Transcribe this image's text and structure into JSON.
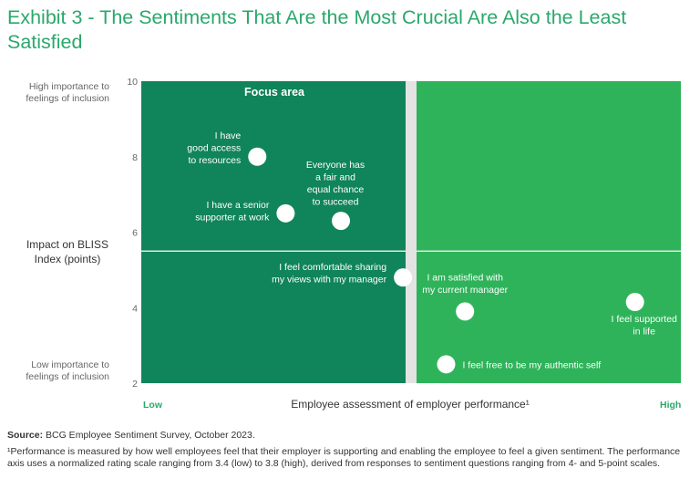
{
  "title": "Exhibit 3 - The Sentiments That Are the Most Crucial Are Also the Least Satisfied",
  "colors": {
    "title": "#2aa86b",
    "quadrant_left": "#10845a",
    "quadrant_right": "#2fb35a",
    "divider": "#e3e3e3",
    "point": "#ffffff",
    "axis_end": "#2aa86b"
  },
  "y_axis": {
    "label": "Impact on BLISS Index (points)",
    "top_note": "High importance to feelings of inclusion",
    "bottom_note": "Low importance to feelings of inclusion"
  },
  "x_axis": {
    "label": "Employee assessment of employer performance¹",
    "low": "Low",
    "high": "High"
  },
  "focus_area_label": "Focus area",
  "source_prefix": "Source:",
  "source_text": "BCG Employee Sentiment Survey, October 2023.",
  "footnote": "¹Performance is measured by how well employees feel that their employer is supporting and enabling the employee to feel a given sentiment. The performance axis uses a normalized rating scale ranging from 3.4 (low) to 3.8 (high), derived from responses to sentiment questions ranging from 4- and 5-point scales.",
  "chart_data": {
    "type": "scatter",
    "xlim": [
      3.4,
      3.8
    ],
    "ylim": [
      2,
      10
    ],
    "yticks": [
      "10",
      "8",
      "6",
      "4",
      "2"
    ],
    "x_divider": 3.6,
    "y_divider": 5.5,
    "grid": false,
    "points": [
      {
        "label": "I have good access to resources",
        "label_lines": [
          "I have",
          "good access",
          "to resources"
        ],
        "x": 3.486,
        "y": 8.0
      },
      {
        "label": "I have a senior supporter at work",
        "label_lines": [
          "I have a senior",
          "supporter at work"
        ],
        "x": 3.507,
        "y": 6.5
      },
      {
        "label": "Everyone has a fair and equal chance to succeed",
        "label_lines": [
          "Everyone has",
          "a fair and",
          "equal chance",
          "to succeed"
        ],
        "x": 3.548,
        "y": 6.3
      },
      {
        "label": "I feel comfortable sharing my views with my manager",
        "label_lines": [
          "I feel comfortable sharing",
          "my views with my manager"
        ],
        "x": 3.594,
        "y": 4.8
      },
      {
        "label": "I am satisfied with my current manager",
        "label_lines": [
          "I am satisfied with",
          "my current manager"
        ],
        "x": 3.64,
        "y": 3.9
      },
      {
        "label": "I feel supported in life",
        "label_lines": [
          "I feel supported",
          "in life"
        ],
        "x": 3.766,
        "y": 4.15
      },
      {
        "label": "I feel free to be my authentic self",
        "label_lines": [
          "I feel free to be my authentic self"
        ],
        "x": 3.626,
        "y": 2.5
      }
    ]
  }
}
